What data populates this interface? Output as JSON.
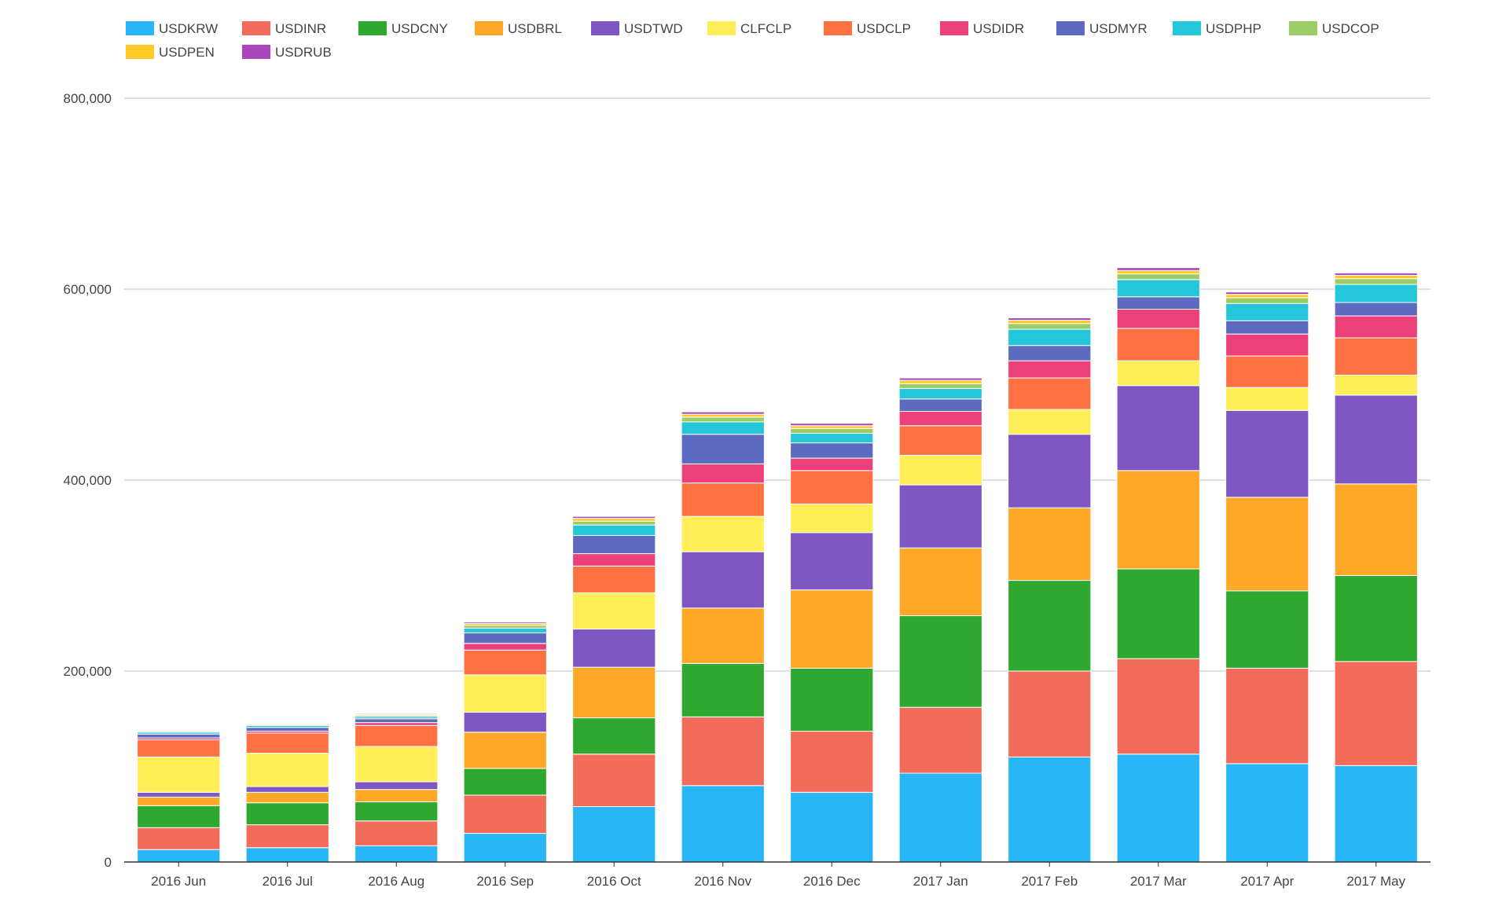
{
  "chart_data": {
    "type": "bar",
    "stacked": true,
    "title": "",
    "xlabel": "",
    "ylabel": "",
    "ylim": [
      0,
      800000
    ],
    "yticks": [
      0,
      200000,
      400000,
      600000,
      800000
    ],
    "ytick_labels": [
      "0",
      "200,000",
      "400,000",
      "600,000",
      "800,000"
    ],
    "grid": true,
    "legend_position": "top",
    "categories": [
      "2016 Jun",
      "2016 Jul",
      "2016 Aug",
      "2016 Sep",
      "2016 Oct",
      "2016 Nov",
      "2016 Dec",
      "2017 Jan",
      "2017 Feb",
      "2017 Mar",
      "2017 Apr",
      "2017 May"
    ],
    "series": [
      {
        "name": "USDKRW",
        "color": "#29b6f6",
        "values": [
          13000,
          15000,
          17000,
          30000,
          58000,
          80000,
          73000,
          93000,
          110000,
          113000,
          103000,
          101000
        ]
      },
      {
        "name": "USDINR",
        "color": "#f26b5b",
        "values": [
          23000,
          24000,
          26000,
          40000,
          55000,
          72000,
          64000,
          69000,
          90000,
          100000,
          100000,
          109000
        ]
      },
      {
        "name": "USDCNY",
        "color": "#2ea82e",
        "values": [
          23000,
          23000,
          20000,
          28000,
          38000,
          56000,
          66000,
          96000,
          95000,
          94000,
          81000,
          90000
        ]
      },
      {
        "name": "USDBRL",
        "color": "#ffa726",
        "values": [
          9000,
          11000,
          13000,
          38000,
          53000,
          58000,
          82000,
          71000,
          76000,
          103000,
          98000,
          96000
        ]
      },
      {
        "name": "USDTWD",
        "color": "#7e57c2",
        "values": [
          5000,
          6000,
          8000,
          21000,
          40000,
          59000,
          60000,
          66000,
          77000,
          89000,
          91000,
          93000
        ]
      },
      {
        "name": "CLFCLP",
        "color": "#ffee58",
        "values": [
          37000,
          35000,
          37000,
          39000,
          38000,
          37000,
          30000,
          31000,
          26000,
          26000,
          24000,
          21000
        ]
      },
      {
        "name": "USDCLP",
        "color": "#ff7043",
        "values": [
          18000,
          21000,
          22000,
          26000,
          28000,
          35000,
          35000,
          31000,
          33000,
          34000,
          33000,
          39000
        ]
      },
      {
        "name": "USDIDR",
        "color": "#ec407a",
        "values": [
          2000,
          2000,
          3000,
          7000,
          13000,
          20000,
          13000,
          15000,
          18000,
          20000,
          23000,
          23000
        ]
      },
      {
        "name": "USDMYR",
        "color": "#5c6bc0",
        "values": [
          4000,
          4000,
          4000,
          11000,
          19000,
          31000,
          16000,
          13000,
          16000,
          13000,
          14000,
          14000
        ]
      },
      {
        "name": "USDPHP",
        "color": "#26c6da",
        "values": [
          2000,
          2000,
          2000,
          5000,
          11000,
          13000,
          10000,
          11000,
          17000,
          18000,
          18000,
          19000
        ]
      },
      {
        "name": "USDCOP",
        "color": "#9ccc65",
        "values": [
          1000,
          1000,
          1500,
          3000,
          4000,
          5000,
          5000,
          5000,
          6000,
          6000,
          6000,
          6000
        ]
      },
      {
        "name": "USDPEN",
        "color": "#ffca28",
        "values": [
          800,
          800,
          1000,
          2000,
          3000,
          3000,
          3000,
          3500,
          3500,
          3500,
          3500,
          3500
        ]
      },
      {
        "name": "USDRUB",
        "color": "#ab47bc",
        "values": [
          800,
          800,
          1000,
          1500,
          2000,
          2500,
          2500,
          2500,
          2500,
          3000,
          2500,
          2500
        ]
      }
    ]
  }
}
